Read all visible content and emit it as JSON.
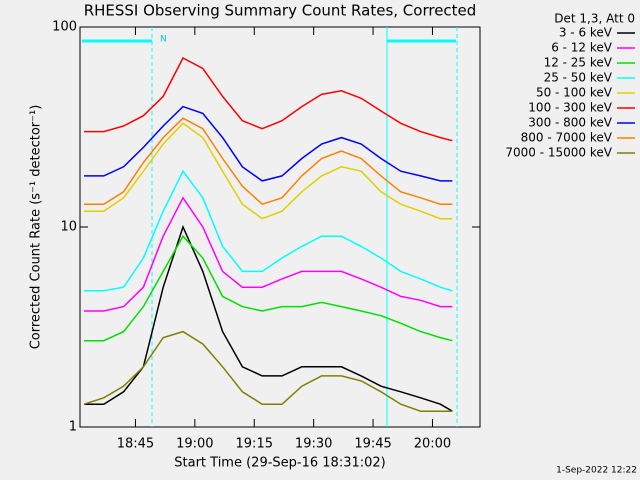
{
  "chart_data": {
    "type": "line",
    "title": "RHESSI Observing Summary Count Rates, Corrected",
    "xlabel": "Start Time (29-Sep-16 18:31:02)",
    "ylabel": "Corrected Count Rate (s⁻¹ detector⁻¹)",
    "legend_title": "Det 1,3, Att 0",
    "footer": "1-Sep-2022 12:22",
    "annotation": "N",
    "log_y": true,
    "xlim": [
      "18:31",
      "20:12"
    ],
    "xticks": [
      "18:45",
      "19:00",
      "19:15",
      "19:30",
      "19:45",
      "20:00"
    ],
    "ylim": [
      1,
      100
    ],
    "yticks": [
      1,
      10,
      100
    ],
    "x": [
      "18:32",
      "18:37",
      "18:42",
      "18:47",
      "18:52",
      "18:57",
      "19:02",
      "19:07",
      "19:12",
      "19:17",
      "19:22",
      "19:27",
      "19:32",
      "19:37",
      "19:42",
      "19:47",
      "19:52",
      "19:57",
      "20:02",
      "20:05"
    ],
    "series": [
      {
        "name": "3 - 6 keV",
        "color": "#000000",
        "values": [
          1.3,
          1.3,
          1.5,
          2,
          5,
          10,
          6,
          3,
          2,
          1.8,
          1.8,
          2,
          2,
          2,
          1.8,
          1.6,
          1.5,
          1.4,
          1.3,
          1.2
        ]
      },
      {
        "name": "6 - 12 keV",
        "color": "#ff00ff",
        "values": [
          3.8,
          3.8,
          4,
          5,
          9,
          14,
          10,
          6,
          5,
          5,
          5.5,
          6,
          6,
          6,
          5.5,
          5,
          4.5,
          4.3,
          4,
          4
        ]
      },
      {
        "name": "12 - 25 keV",
        "color": "#00e000",
        "values": [
          2.7,
          2.7,
          3,
          4,
          6,
          9,
          7,
          4.5,
          4,
          3.8,
          4,
          4,
          4.2,
          4,
          3.8,
          3.6,
          3.3,
          3,
          2.8,
          2.7
        ]
      },
      {
        "name": "25 - 50 keV",
        "color": "#00ffff",
        "values": [
          4.8,
          4.8,
          5,
          7,
          12,
          19,
          14,
          8,
          6,
          6,
          7,
          8,
          9,
          9,
          8,
          7,
          6,
          5.5,
          5,
          4.8
        ]
      },
      {
        "name": "50 - 100 keV",
        "color": "#e0d000",
        "values": [
          12,
          12,
          14,
          19,
          26,
          33,
          28,
          19,
          13,
          11,
          12,
          15,
          18,
          20,
          19,
          15,
          13,
          12,
          11,
          11
        ]
      },
      {
        "name": "100 - 300 keV",
        "color": "#ff0000",
        "values": [
          30,
          30,
          32,
          36,
          45,
          70,
          62,
          45,
          34,
          31,
          34,
          40,
          46,
          48,
          44,
          38,
          33,
          30,
          28,
          27
        ]
      },
      {
        "name": "300 - 800 keV",
        "color": "#0000ff",
        "values": [
          18,
          18,
          20,
          25,
          32,
          40,
          37,
          28,
          20,
          17,
          18,
          22,
          26,
          28,
          26,
          22,
          19,
          18,
          17,
          17
        ]
      },
      {
        "name": "800 - 7000 keV",
        "color": "#ff8000",
        "values": [
          13,
          13,
          15,
          21,
          28,
          35,
          31,
          22,
          16,
          13,
          14,
          18,
          22,
          24,
          22,
          18,
          15,
          14,
          13,
          13
        ]
      },
      {
        "name": "7000 - 15000 keV",
        "color": "#808000",
        "values": [
          1.3,
          1.4,
          1.6,
          2,
          2.8,
          3,
          2.6,
          2,
          1.5,
          1.3,
          1.3,
          1.6,
          1.8,
          1.8,
          1.7,
          1.5,
          1.3,
          1.2,
          1.2,
          1.2
        ]
      }
    ]
  }
}
